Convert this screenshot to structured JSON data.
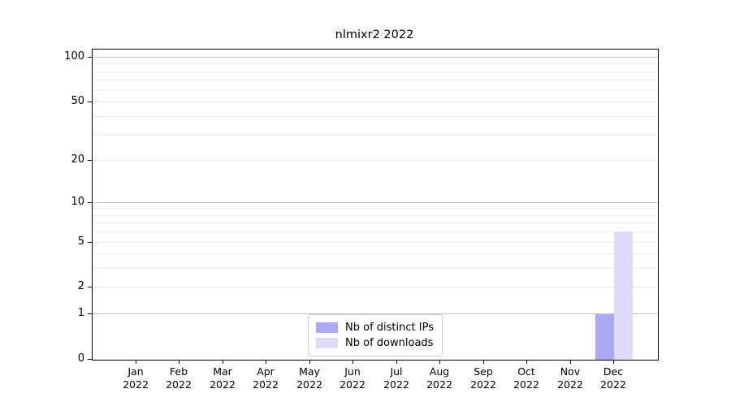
{
  "chart_data": {
    "type": "bar",
    "title": "nlmixr2 2022",
    "categories": [
      {
        "month": "Jan",
        "year": "2022"
      },
      {
        "month": "Feb",
        "year": "2022"
      },
      {
        "month": "Mar",
        "year": "2022"
      },
      {
        "month": "Apr",
        "year": "2022"
      },
      {
        "month": "May",
        "year": "2022"
      },
      {
        "month": "Jun",
        "year": "2022"
      },
      {
        "month": "Jul",
        "year": "2022"
      },
      {
        "month": "Aug",
        "year": "2022"
      },
      {
        "month": "Sep",
        "year": "2022"
      },
      {
        "month": "Oct",
        "year": "2022"
      },
      {
        "month": "Nov",
        "year": "2022"
      },
      {
        "month": "Dec",
        "year": "2022"
      }
    ],
    "series": [
      {
        "name": "Nb of distinct IPs",
        "color": "#a9a9f4",
        "values": [
          0,
          0,
          0,
          0,
          0,
          0,
          0,
          0,
          0,
          0,
          0,
          1
        ]
      },
      {
        "name": "Nb of downloads",
        "color": "#dcdcf8",
        "values": [
          0,
          0,
          0,
          0,
          0,
          0,
          0,
          0,
          0,
          0,
          0,
          6
        ]
      }
    ],
    "xlabel": "",
    "ylabel": "",
    "yticks": [
      0,
      1,
      2,
      5,
      10,
      20,
      50,
      100
    ],
    "ylim": [
      0,
      113
    ],
    "scale": "log1p",
    "grid": true,
    "grid_major_values": [
      1,
      10,
      100
    ],
    "grid_minor_values": [
      2,
      3,
      4,
      5,
      6,
      7,
      8,
      9,
      20,
      30,
      40,
      50,
      60,
      70,
      80,
      90
    ],
    "grid_major_color": "#c3c3c3",
    "grid_minor_color": "#ebebeb",
    "axis_color": "#000000",
    "legend_position": "inside-bottom-center",
    "legend_border_color": "#cccccc"
  }
}
